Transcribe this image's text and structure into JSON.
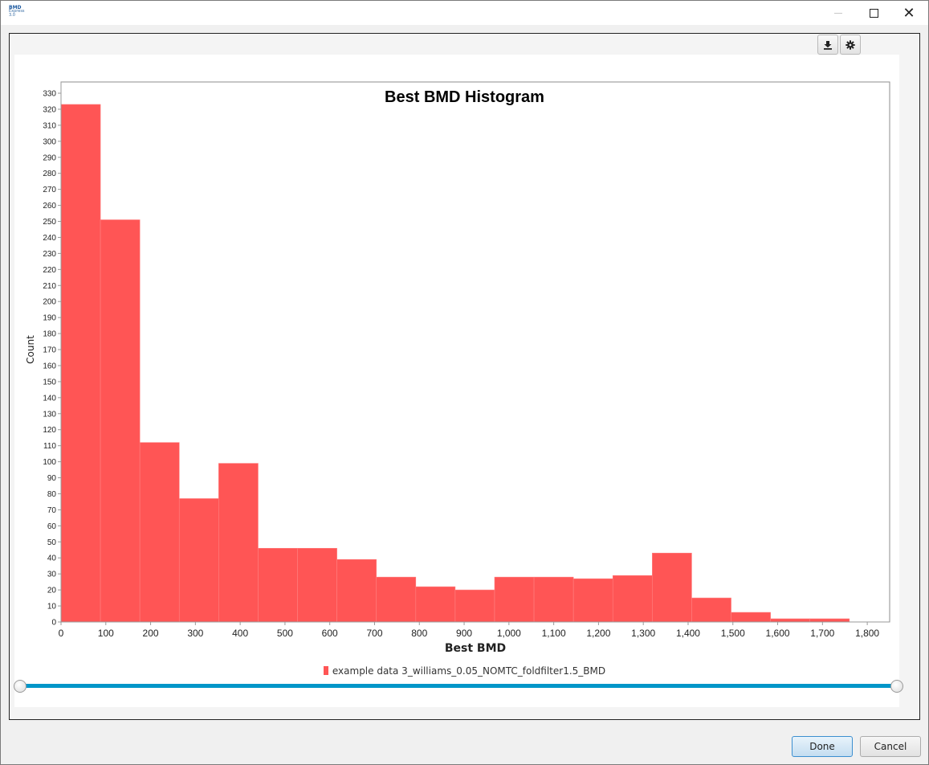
{
  "window": {
    "app_icon_lines": [
      "BMD",
      "Express",
      "3.0"
    ],
    "buttons": {
      "minimize": "minimize-icon",
      "maximize": "maximize-icon",
      "close": "close-icon"
    }
  },
  "toolbar": {
    "download_icon": "download-icon",
    "settings_icon": "gear-icon"
  },
  "chart_data": {
    "type": "bar",
    "title": "Best BMD Histogram",
    "xlabel": "Best BMD",
    "ylabel": "Count",
    "xlim": [
      0,
      1850
    ],
    "ylim": [
      0,
      330
    ],
    "x_ticks": [
      0,
      100,
      200,
      300,
      400,
      500,
      600,
      700,
      800,
      900,
      1000,
      1100,
      1200,
      1300,
      1400,
      1500,
      1600,
      1700,
      1800
    ],
    "x_tick_labels": [
      "0",
      "100",
      "200",
      "300",
      "400",
      "500",
      "600",
      "700",
      "800",
      "900",
      "1,000",
      "1,100",
      "1,200",
      "1,300",
      "1,400",
      "1,500",
      "1,600",
      "1,700",
      "1,800"
    ],
    "y_ticks": [
      0,
      10,
      20,
      30,
      40,
      50,
      60,
      70,
      80,
      90,
      100,
      110,
      120,
      130,
      140,
      150,
      160,
      170,
      180,
      190,
      200,
      210,
      220,
      230,
      240,
      250,
      260,
      270,
      280,
      290,
      300,
      310,
      320,
      330
    ],
    "bin_edges": [
      0,
      88,
      176,
      264,
      352,
      440,
      528,
      616,
      704,
      792,
      880,
      968,
      1056,
      1144,
      1232,
      1320,
      1408,
      1496,
      1584,
      1672,
      1760
    ],
    "series": [
      {
        "name": "example data 3_williams_0.05_NOMTC_foldfilter1.5_BMD",
        "values": [
          323,
          251,
          112,
          77,
          99,
          46,
          46,
          39,
          28,
          22,
          20,
          28,
          28,
          27,
          29,
          43,
          15,
          6,
          2,
          2
        ],
        "color": "#ff5555"
      }
    ],
    "grid": false,
    "legend_position": "bottom"
  },
  "range_slider": {
    "min_fraction": 0.0,
    "max_fraction": 1.0
  },
  "buttons": {
    "done": "Done",
    "cancel": "Cancel"
  }
}
